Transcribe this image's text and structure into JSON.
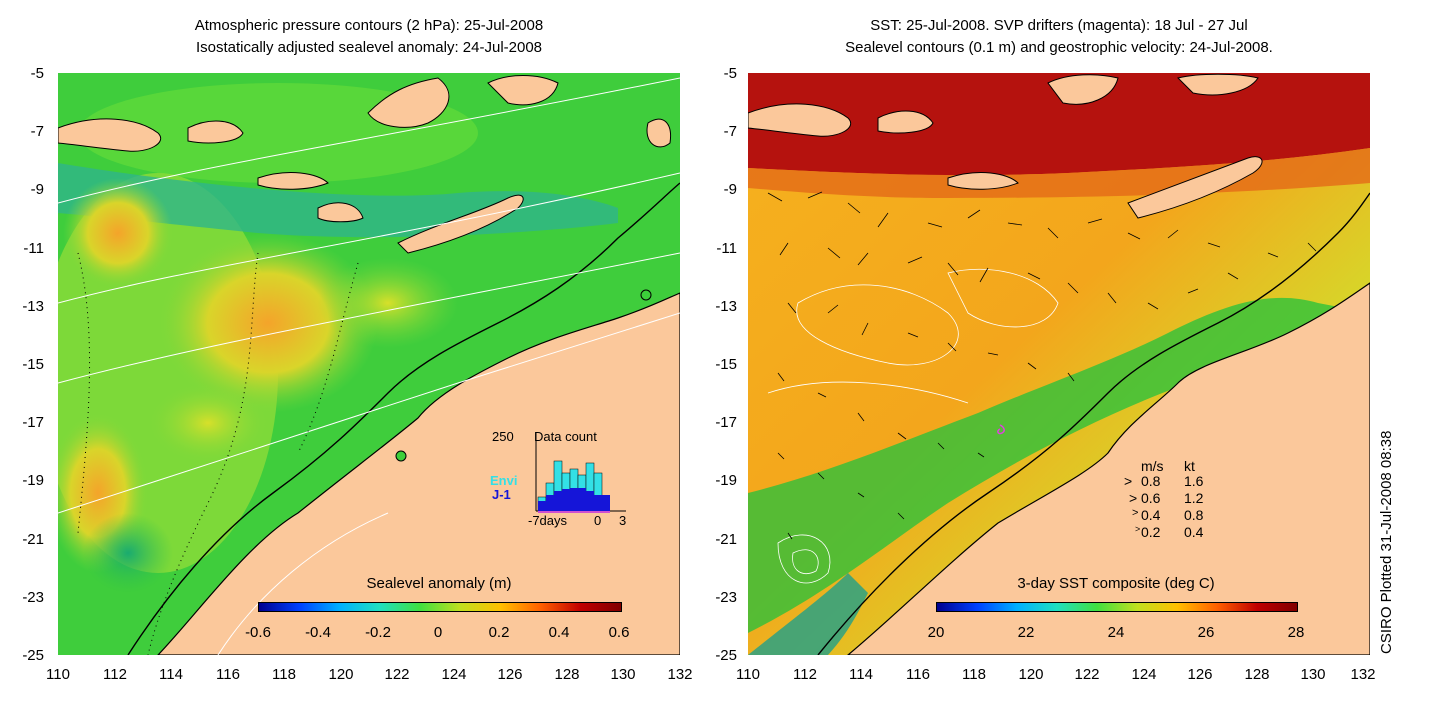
{
  "left_panel": {
    "title_line1": "Atmospheric pressure contours (2 hPa): 25-Jul-2008",
    "title_line2": "Isostatically adjusted sealevel anomaly: 24-Jul-2008",
    "colorbar_title": "Sealevel anomaly (m)",
    "colorbar_ticks": [
      "-0.6",
      "-0.4",
      "-0.2",
      "0",
      "0.2",
      "0.4",
      "0.6"
    ],
    "inset": {
      "title": "Data count",
      "ymax_label": "250",
      "legend_envi": "Envi",
      "legend_j1": "J-1",
      "x_start": "-7days",
      "x_zero": "0",
      "x_end": "3",
      "envi_color": "#33e0e6",
      "j1_color": "#1515d8"
    }
  },
  "right_panel": {
    "title_line1": "SST: 25-Jul-2008. SVP drifters (magenta): 18 Jul - 27 Jul",
    "title_line2": "Sealevel contours (0.1 m) and geostrophic velocity: 24-Jul-2008.",
    "colorbar_title": "3-day SST composite (deg C)",
    "colorbar_ticks": [
      "20",
      "22",
      "24",
      "26",
      "28"
    ],
    "vector_legend": {
      "header_ms": "m/s",
      "header_kt": "kt",
      "rows": [
        {
          "ms": "0.8",
          "kt": "1.6"
        },
        {
          "ms": "0.6",
          "kt": "1.2"
        },
        {
          "ms": "0.4",
          "kt": "0.8"
        },
        {
          "ms": "0.2",
          "kt": "0.4"
        }
      ]
    }
  },
  "y_ticks": [
    "-5",
    "-7",
    "-9",
    "-11",
    "-13",
    "-15",
    "-17",
    "-19",
    "-21",
    "-23",
    "-25"
  ],
  "x_ticks": [
    "110",
    "112",
    "114",
    "116",
    "118",
    "120",
    "122",
    "124",
    "126",
    "128",
    "130",
    "132"
  ],
  "footer_vertical": "CSIRO Plotted 31-Jul-2008 08:38",
  "colors": {
    "land": "#fbc89b",
    "ocean_green": "#3ccf3a",
    "sst_warm": "#f4a11e",
    "sst_hot": "#b5120e"
  }
}
